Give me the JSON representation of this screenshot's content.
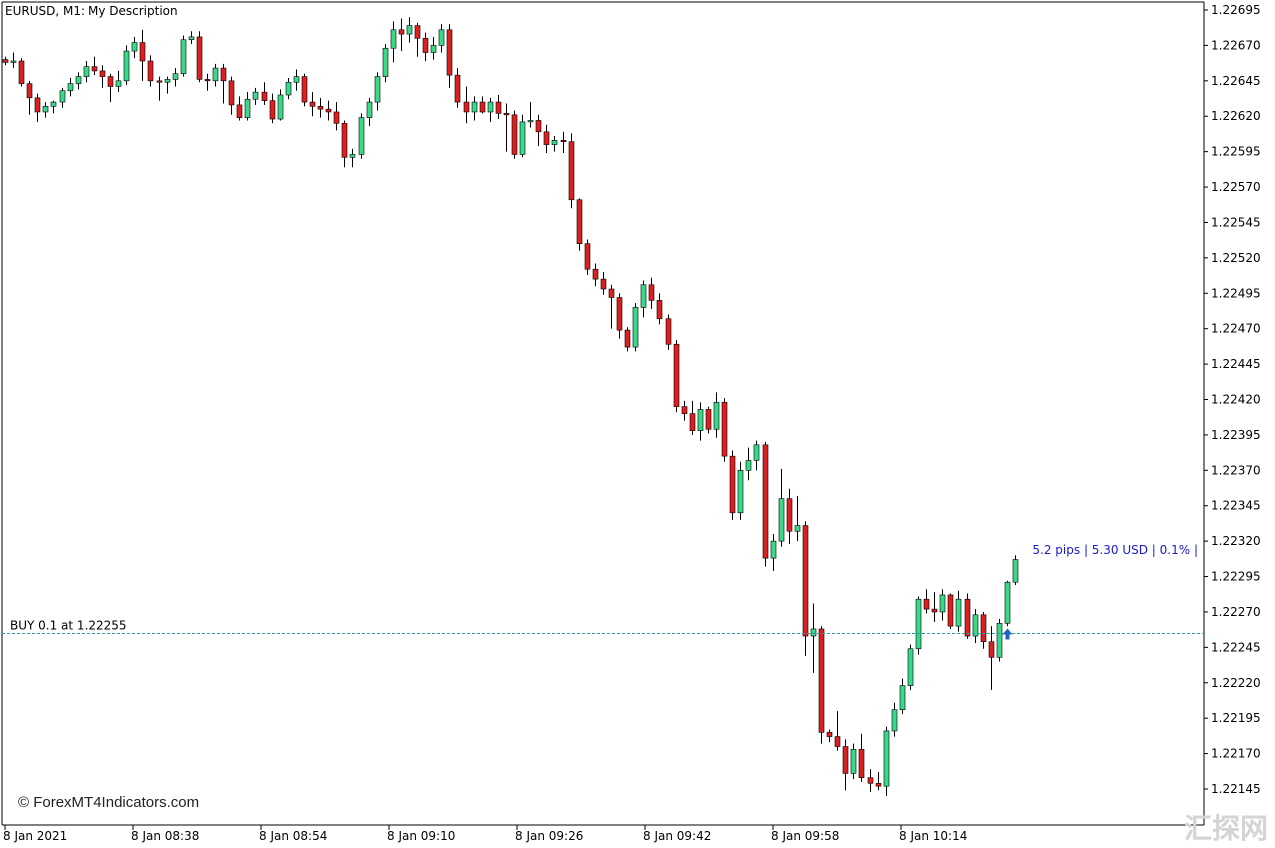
{
  "header": {
    "symbol": "EURUSD, M1:",
    "description": "My Description"
  },
  "position_line": {
    "label": "BUY 0.1 at 1.22255",
    "price": 1.22255,
    "color": "#2a9d9d"
  },
  "pnl_label": "5.2 pips | 5.30 USD | 0.1% |",
  "watermark": "© ForexMT4Indicators.com",
  "corner_logo": "汇探网",
  "colors": {
    "bull": "#3ad98a",
    "bear": "#dd1f1f",
    "wick": "#000000",
    "grid": "#000000",
    "arrow": "#1e63c8"
  },
  "chart_data": {
    "type": "candlestick",
    "symbol": "EURUSD",
    "timeframe": "M1",
    "ylim": [
      1.2213,
      1.22701
    ],
    "y_ticks": [
      "1.22695",
      "1.22670",
      "1.22645",
      "1.22620",
      "1.22595",
      "1.22570",
      "1.22545",
      "1.22520",
      "1.22495",
      "1.22470",
      "1.22445",
      "1.22420",
      "1.22395",
      "1.22370",
      "1.22345",
      "1.22320",
      "1.22295",
      "1.22270",
      "1.22245",
      "1.22220",
      "1.22195",
      "1.22170",
      "1.22145"
    ],
    "x_ticks": [
      "8 Jan 2021",
      "8 Jan 08:38",
      "8 Jan 08:54",
      "8 Jan 09:10",
      "8 Jan 09:26",
      "8 Jan 09:42",
      "8 Jan 09:58",
      "8 Jan 10:14"
    ],
    "buy_arrow_index": 124,
    "candles_ohlc": [
      [
        1.2266,
        1.22662,
        1.22656,
        1.22658
      ],
      [
        1.22658,
        1.22665,
        1.22654,
        1.22659
      ],
      [
        1.22659,
        1.22661,
        1.22641,
        1.22643
      ],
      [
        1.22643,
        1.22645,
        1.22621,
        1.22633
      ],
      [
        1.22633,
        1.22636,
        1.22616,
        1.22623
      ],
      [
        1.22623,
        1.2263,
        1.22619,
        1.22627
      ],
      [
        1.22627,
        1.22631,
        1.22622,
        1.2263
      ],
      [
        1.2263,
        1.2264,
        1.22626,
        1.22638
      ],
      [
        1.22638,
        1.22647,
        1.22634,
        1.22643
      ],
      [
        1.22643,
        1.22651,
        1.22639,
        1.22648
      ],
      [
        1.22648,
        1.22659,
        1.22644,
        1.22655
      ],
      [
        1.22655,
        1.22662,
        1.22649,
        1.22652
      ],
      [
        1.22652,
        1.22656,
        1.2264,
        1.22648
      ],
      [
        1.22648,
        1.2265,
        1.2263,
        1.22641
      ],
      [
        1.22641,
        1.22652,
        1.22637,
        1.22645
      ],
      [
        1.22645,
        1.2267,
        1.22642,
        1.22666
      ],
      [
        1.22666,
        1.22676,
        1.22661,
        1.22672
      ],
      [
        1.22672,
        1.22681,
        1.22645,
        1.22659
      ],
      [
        1.22659,
        1.22663,
        1.22641,
        1.22645
      ],
      [
        1.22645,
        1.22648,
        1.22631,
        1.22644
      ],
      [
        1.22644,
        1.22648,
        1.22636,
        1.22646
      ],
      [
        1.22646,
        1.22654,
        1.22641,
        1.2265
      ],
      [
        1.2265,
        1.22677,
        1.22648,
        1.22674
      ],
      [
        1.22674,
        1.2268,
        1.22671,
        1.22676
      ],
      [
        1.22676,
        1.2268,
        1.22644,
        1.22646
      ],
      [
        1.22646,
        1.2265,
        1.22638,
        1.22645
      ],
      [
        1.22645,
        1.22657,
        1.22641,
        1.22654
      ],
      [
        1.22654,
        1.22657,
        1.22629,
        1.22645
      ],
      [
        1.22645,
        1.22648,
        1.22621,
        1.22628
      ],
      [
        1.22628,
        1.22634,
        1.22617,
        1.22619
      ],
      [
        1.22619,
        1.22637,
        1.22617,
        1.22632
      ],
      [
        1.22632,
        1.2264,
        1.22628,
        1.22637
      ],
      [
        1.22637,
        1.22644,
        1.22628,
        1.22631
      ],
      [
        1.22631,
        1.22636,
        1.22615,
        1.22618
      ],
      [
        1.22618,
        1.22639,
        1.22617,
        1.22635
      ],
      [
        1.22635,
        1.22647,
        1.22632,
        1.22644
      ],
      [
        1.22644,
        1.22653,
        1.22638,
        1.22648
      ],
      [
        1.22648,
        1.2265,
        1.22627,
        1.2263
      ],
      [
        1.2263,
        1.22637,
        1.2262,
        1.22627
      ],
      [
        1.22627,
        1.22633,
        1.22619,
        1.22625
      ],
      [
        1.22625,
        1.22631,
        1.22617,
        1.22623
      ],
      [
        1.22623,
        1.2263,
        1.2261,
        1.22615
      ],
      [
        1.22615,
        1.22617,
        1.22584,
        1.22591
      ],
      [
        1.22591,
        1.22597,
        1.22584,
        1.22593
      ],
      [
        1.22593,
        1.22622,
        1.2259,
        1.22619
      ],
      [
        1.22619,
        1.22633,
        1.22613,
        1.2263
      ],
      [
        1.2263,
        1.22651,
        1.22624,
        1.22648
      ],
      [
        1.22648,
        1.22671,
        1.22644,
        1.22668
      ],
      [
        1.22668,
        1.22687,
        1.22658,
        1.22681
      ],
      [
        1.22681,
        1.22689,
        1.22666,
        1.22678
      ],
      [
        1.22678,
        1.2269,
        1.22672,
        1.22684
      ],
      [
        1.22684,
        1.22686,
        1.22662,
        1.22675
      ],
      [
        1.22675,
        1.22679,
        1.22659,
        1.22665
      ],
      [
        1.22665,
        1.22676,
        1.2266,
        1.2267
      ],
      [
        1.2267,
        1.22685,
        1.22665,
        1.22681
      ],
      [
        1.22681,
        1.22685,
        1.2264,
        1.22649
      ],
      [
        1.22649,
        1.22654,
        1.22626,
        1.2263
      ],
      [
        1.2263,
        1.22641,
        1.22615,
        1.22623
      ],
      [
        1.22623,
        1.22634,
        1.22617,
        1.2263
      ],
      [
        1.2263,
        1.22634,
        1.22622,
        1.22623
      ],
      [
        1.22623,
        1.22633,
        1.22616,
        1.2263
      ],
      [
        1.2263,
        1.22635,
        1.22618,
        1.22622
      ],
      [
        1.22622,
        1.22629,
        1.22595,
        1.22621
      ],
      [
        1.22621,
        1.22624,
        1.2259,
        1.22593
      ],
      [
        1.22593,
        1.22621,
        1.22591,
        1.22616
      ],
      [
        1.22616,
        1.2263,
        1.22612,
        1.22617
      ],
      [
        1.22617,
        1.22621,
        1.22599,
        1.22609
      ],
      [
        1.22609,
        1.22614,
        1.22594,
        1.226
      ],
      [
        1.226,
        1.22606,
        1.22595,
        1.22603
      ],
      [
        1.22603,
        1.22609,
        1.22594,
        1.22602
      ],
      [
        1.22602,
        1.22608,
        1.22555,
        1.22561
      ],
      [
        1.22561,
        1.22562,
        1.22525,
        1.2253
      ],
      [
        1.2253,
        1.22533,
        1.22508,
        1.22512
      ],
      [
        1.22512,
        1.22516,
        1.225,
        1.22505
      ],
      [
        1.22505,
        1.2251,
        1.22494,
        1.22498
      ],
      [
        1.22498,
        1.22501,
        1.2247,
        1.22492
      ],
      [
        1.22492,
        1.22495,
        1.22463,
        1.22469
      ],
      [
        1.22469,
        1.22471,
        1.22454,
        1.22457
      ],
      [
        1.22457,
        1.22488,
        1.22454,
        1.22485
      ],
      [
        1.22485,
        1.22504,
        1.22478,
        1.22501
      ],
      [
        1.22501,
        1.22506,
        1.22484,
        1.2249
      ],
      [
        1.2249,
        1.22495,
        1.22473,
        1.22477
      ],
      [
        1.22477,
        1.2248,
        1.22455,
        1.22459
      ],
      [
        1.22459,
        1.22462,
        1.22411,
        1.22415
      ],
      [
        1.22415,
        1.22419,
        1.22405,
        1.2241
      ],
      [
        1.2241,
        1.22419,
        1.22395,
        1.22398
      ],
      [
        1.22398,
        1.22418,
        1.22391,
        1.22413
      ],
      [
        1.22413,
        1.22415,
        1.22396,
        1.22399
      ],
      [
        1.22399,
        1.22425,
        1.22393,
        1.22418
      ],
      [
        1.22418,
        1.22421,
        1.22376,
        1.2238
      ],
      [
        1.2238,
        1.22384,
        1.22335,
        1.2234
      ],
      [
        1.2234,
        1.22376,
        1.22335,
        1.2237
      ],
      [
        1.2237,
        1.22386,
        1.22363,
        1.22377
      ],
      [
        1.22377,
        1.22391,
        1.2237,
        1.22388
      ],
      [
        1.22388,
        1.2239,
        1.22302,
        1.22308
      ],
      [
        1.22308,
        1.22325,
        1.22299,
        1.2232
      ],
      [
        1.2232,
        1.22371,
        1.22316,
        1.2235
      ],
      [
        1.2235,
        1.22357,
        1.22318,
        1.22327
      ],
      [
        1.22327,
        1.22352,
        1.2232,
        1.22331
      ],
      [
        1.22331,
        1.22334,
        1.22239,
        1.22253
      ],
      [
        1.22253,
        1.22276,
        1.22227,
        1.22258
      ],
      [
        1.22258,
        1.2226,
        1.22177,
        1.22185
      ],
      [
        1.22185,
        1.22187,
        1.22178,
        1.22182
      ],
      [
        1.22182,
        1.222,
        1.22172,
        1.22175
      ],
      [
        1.22175,
        1.2218,
        1.22144,
        1.22156
      ],
      [
        1.22156,
        1.22177,
        1.22152,
        1.22173
      ],
      [
        1.22173,
        1.22184,
        1.2215,
        1.22153
      ],
      [
        1.22153,
        1.22159,
        1.22143,
        1.22149
      ],
      [
        1.22149,
        1.22157,
        1.22144,
        1.22147
      ],
      [
        1.22147,
        1.22189,
        1.2214,
        1.22186
      ],
      [
        1.22186,
        1.22206,
        1.22182,
        1.22201
      ],
      [
        1.22201,
        1.22223,
        1.22198,
        1.22218
      ],
      [
        1.22218,
        1.22247,
        1.22215,
        1.22244
      ],
      [
        1.22244,
        1.22281,
        1.2224,
        1.22279
      ],
      [
        1.22279,
        1.22286,
        1.22269,
        1.22272
      ],
      [
        1.22272,
        1.22284,
        1.22263,
        1.2227
      ],
      [
        1.2227,
        1.22286,
        1.22264,
        1.22282
      ],
      [
        1.22282,
        1.22283,
        1.22258,
        1.2226
      ],
      [
        1.2226,
        1.22285,
        1.22256,
        1.22279
      ],
      [
        1.22279,
        1.22283,
        1.22251,
        1.22253
      ],
      [
        1.22253,
        1.22272,
        1.22248,
        1.22268
      ],
      [
        1.22268,
        1.2227,
        1.22244,
        1.22249
      ],
      [
        1.22249,
        1.2226,
        1.22215,
        1.22238
      ],
      [
        1.22238,
        1.22265,
        1.22235,
        1.22262
      ],
      [
        1.22262,
        1.22292,
        1.2226,
        1.22291
      ],
      [
        1.22291,
        1.2231,
        1.22289,
        1.22307
      ]
    ]
  }
}
